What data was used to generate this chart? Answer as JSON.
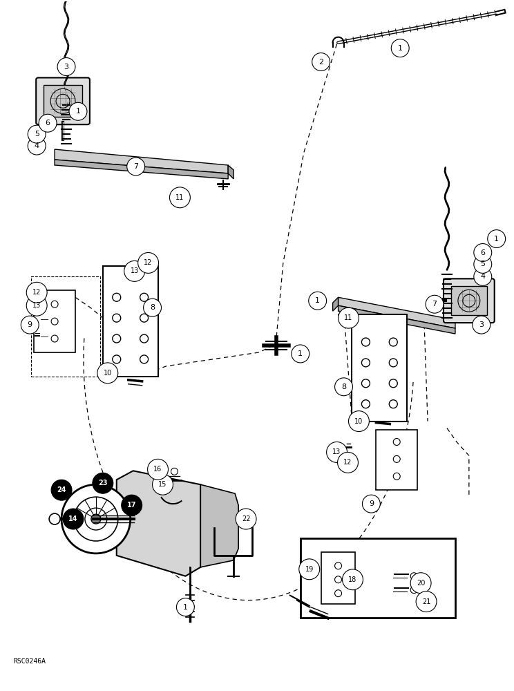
{
  "figsize": [
    7.44,
    10.0
  ],
  "dpi": 100,
  "bg_color": "#ffffff",
  "watermark": "RSC0246A",
  "title_color": "#000000",
  "line_color": "#000000"
}
